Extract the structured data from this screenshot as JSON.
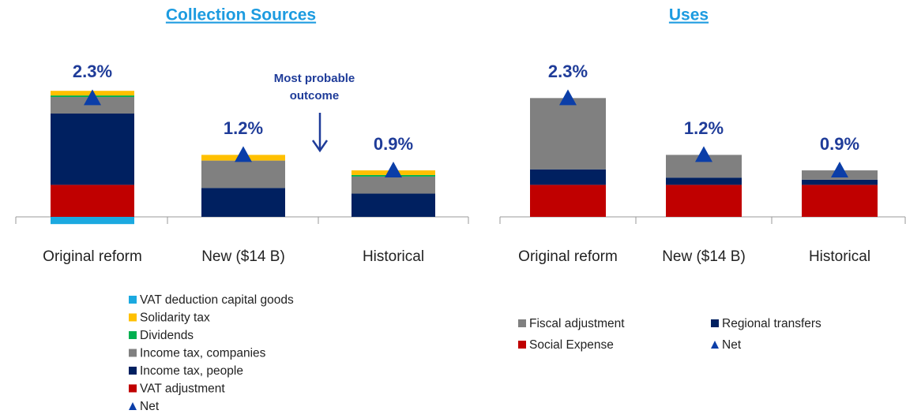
{
  "chart_data": [
    {
      "type": "bar",
      "stacked": true,
      "title": "Collection Sources",
      "categories": [
        "Original reform",
        "New ($14 B)",
        "Historical"
      ],
      "series": [
        {
          "name": "VAT adjustment",
          "color": "#c00000",
          "values": [
            0.62,
            0,
            0
          ]
        },
        {
          "name": "Income tax, people",
          "color": "#002060",
          "values": [
            1.38,
            0.56,
            0.45
          ]
        },
        {
          "name": "Income tax, companies",
          "color": "#808080",
          "values": [
            0.32,
            0.53,
            0.33
          ]
        },
        {
          "name": "Dividends",
          "color": "#00b050",
          "values": [
            0.03,
            0,
            0.03
          ]
        },
        {
          "name": "Solidarity tax",
          "color": "#ffc000",
          "values": [
            0.09,
            0.11,
            0.09
          ]
        },
        {
          "name": "VAT deduction capital goods",
          "color": "#1ba9e0",
          "values": [
            -0.14,
            0,
            0
          ]
        }
      ],
      "net": {
        "name": "Net",
        "color": "#0b3ea8",
        "values": [
          2.3,
          1.2,
          0.9
        ],
        "value_labels": [
          "2.3%",
          "1.2%",
          "0.9%"
        ]
      },
      "annotation": [
        "Most probable",
        "outcome"
      ]
    },
    {
      "type": "bar",
      "stacked": true,
      "title": "Uses",
      "categories": [
        "Original reform",
        "New ($14 B)",
        "Historical"
      ],
      "series": [
        {
          "name": "Social Expense",
          "color": "#c00000",
          "values": [
            0.62,
            0.62,
            0.62
          ]
        },
        {
          "name": "Regional transfers",
          "color": "#002060",
          "values": [
            0.3,
            0.14,
            0.1
          ]
        },
        {
          "name": "Fiscal adjustment",
          "color": "#808080",
          "values": [
            1.38,
            0.44,
            0.18
          ]
        }
      ],
      "net": {
        "name": "Net",
        "color": "#0b3ea8",
        "values": [
          2.3,
          1.2,
          0.9
        ],
        "value_labels": [
          "2.3%",
          "1.2%",
          "0.9%"
        ]
      }
    }
  ]
}
